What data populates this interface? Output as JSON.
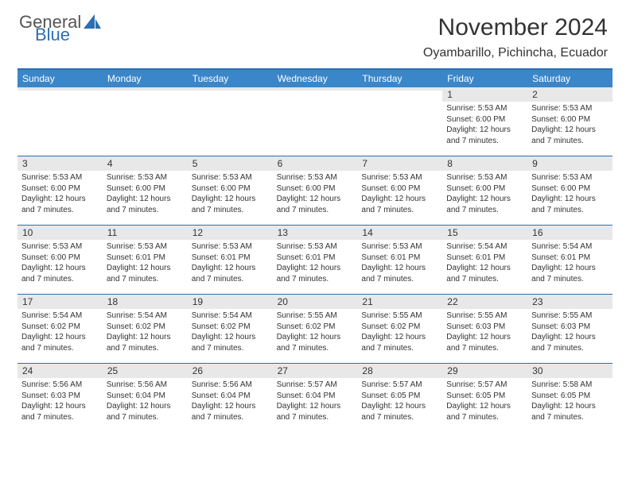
{
  "brand": {
    "text1": "General",
    "text2": "Blue",
    "logo_color": "#2d6fb3"
  },
  "title": "November 2024",
  "location": "Oyambarillo, Pichincha, Ecuador",
  "colors": {
    "header_bg": "#3b86c8",
    "header_text": "#ffffff",
    "border": "#2d6fb3",
    "daynum_bg": "#e8e8e8",
    "text": "#333333",
    "bg": "#ffffff"
  },
  "day_names": [
    "Sunday",
    "Monday",
    "Tuesday",
    "Wednesday",
    "Thursday",
    "Friday",
    "Saturday"
  ],
  "weeks": [
    [
      {
        "n": "",
        "sr": "",
        "ss": "",
        "dl": ""
      },
      {
        "n": "",
        "sr": "",
        "ss": "",
        "dl": ""
      },
      {
        "n": "",
        "sr": "",
        "ss": "",
        "dl": ""
      },
      {
        "n": "",
        "sr": "",
        "ss": "",
        "dl": ""
      },
      {
        "n": "",
        "sr": "",
        "ss": "",
        "dl": ""
      },
      {
        "n": "1",
        "sr": "Sunrise: 5:53 AM",
        "ss": "Sunset: 6:00 PM",
        "dl": "Daylight: 12 hours and 7 minutes."
      },
      {
        "n": "2",
        "sr": "Sunrise: 5:53 AM",
        "ss": "Sunset: 6:00 PM",
        "dl": "Daylight: 12 hours and 7 minutes."
      }
    ],
    [
      {
        "n": "3",
        "sr": "Sunrise: 5:53 AM",
        "ss": "Sunset: 6:00 PM",
        "dl": "Daylight: 12 hours and 7 minutes."
      },
      {
        "n": "4",
        "sr": "Sunrise: 5:53 AM",
        "ss": "Sunset: 6:00 PM",
        "dl": "Daylight: 12 hours and 7 minutes."
      },
      {
        "n": "5",
        "sr": "Sunrise: 5:53 AM",
        "ss": "Sunset: 6:00 PM",
        "dl": "Daylight: 12 hours and 7 minutes."
      },
      {
        "n": "6",
        "sr": "Sunrise: 5:53 AM",
        "ss": "Sunset: 6:00 PM",
        "dl": "Daylight: 12 hours and 7 minutes."
      },
      {
        "n": "7",
        "sr": "Sunrise: 5:53 AM",
        "ss": "Sunset: 6:00 PM",
        "dl": "Daylight: 12 hours and 7 minutes."
      },
      {
        "n": "8",
        "sr": "Sunrise: 5:53 AM",
        "ss": "Sunset: 6:00 PM",
        "dl": "Daylight: 12 hours and 7 minutes."
      },
      {
        "n": "9",
        "sr": "Sunrise: 5:53 AM",
        "ss": "Sunset: 6:00 PM",
        "dl": "Daylight: 12 hours and 7 minutes."
      }
    ],
    [
      {
        "n": "10",
        "sr": "Sunrise: 5:53 AM",
        "ss": "Sunset: 6:00 PM",
        "dl": "Daylight: 12 hours and 7 minutes."
      },
      {
        "n": "11",
        "sr": "Sunrise: 5:53 AM",
        "ss": "Sunset: 6:01 PM",
        "dl": "Daylight: 12 hours and 7 minutes."
      },
      {
        "n": "12",
        "sr": "Sunrise: 5:53 AM",
        "ss": "Sunset: 6:01 PM",
        "dl": "Daylight: 12 hours and 7 minutes."
      },
      {
        "n": "13",
        "sr": "Sunrise: 5:53 AM",
        "ss": "Sunset: 6:01 PM",
        "dl": "Daylight: 12 hours and 7 minutes."
      },
      {
        "n": "14",
        "sr": "Sunrise: 5:53 AM",
        "ss": "Sunset: 6:01 PM",
        "dl": "Daylight: 12 hours and 7 minutes."
      },
      {
        "n": "15",
        "sr": "Sunrise: 5:54 AM",
        "ss": "Sunset: 6:01 PM",
        "dl": "Daylight: 12 hours and 7 minutes."
      },
      {
        "n": "16",
        "sr": "Sunrise: 5:54 AM",
        "ss": "Sunset: 6:01 PM",
        "dl": "Daylight: 12 hours and 7 minutes."
      }
    ],
    [
      {
        "n": "17",
        "sr": "Sunrise: 5:54 AM",
        "ss": "Sunset: 6:02 PM",
        "dl": "Daylight: 12 hours and 7 minutes."
      },
      {
        "n": "18",
        "sr": "Sunrise: 5:54 AM",
        "ss": "Sunset: 6:02 PM",
        "dl": "Daylight: 12 hours and 7 minutes."
      },
      {
        "n": "19",
        "sr": "Sunrise: 5:54 AM",
        "ss": "Sunset: 6:02 PM",
        "dl": "Daylight: 12 hours and 7 minutes."
      },
      {
        "n": "20",
        "sr": "Sunrise: 5:55 AM",
        "ss": "Sunset: 6:02 PM",
        "dl": "Daylight: 12 hours and 7 minutes."
      },
      {
        "n": "21",
        "sr": "Sunrise: 5:55 AM",
        "ss": "Sunset: 6:02 PM",
        "dl": "Daylight: 12 hours and 7 minutes."
      },
      {
        "n": "22",
        "sr": "Sunrise: 5:55 AM",
        "ss": "Sunset: 6:03 PM",
        "dl": "Daylight: 12 hours and 7 minutes."
      },
      {
        "n": "23",
        "sr": "Sunrise: 5:55 AM",
        "ss": "Sunset: 6:03 PM",
        "dl": "Daylight: 12 hours and 7 minutes."
      }
    ],
    [
      {
        "n": "24",
        "sr": "Sunrise: 5:56 AM",
        "ss": "Sunset: 6:03 PM",
        "dl": "Daylight: 12 hours and 7 minutes."
      },
      {
        "n": "25",
        "sr": "Sunrise: 5:56 AM",
        "ss": "Sunset: 6:04 PM",
        "dl": "Daylight: 12 hours and 7 minutes."
      },
      {
        "n": "26",
        "sr": "Sunrise: 5:56 AM",
        "ss": "Sunset: 6:04 PM",
        "dl": "Daylight: 12 hours and 7 minutes."
      },
      {
        "n": "27",
        "sr": "Sunrise: 5:57 AM",
        "ss": "Sunset: 6:04 PM",
        "dl": "Daylight: 12 hours and 7 minutes."
      },
      {
        "n": "28",
        "sr": "Sunrise: 5:57 AM",
        "ss": "Sunset: 6:05 PM",
        "dl": "Daylight: 12 hours and 7 minutes."
      },
      {
        "n": "29",
        "sr": "Sunrise: 5:57 AM",
        "ss": "Sunset: 6:05 PM",
        "dl": "Daylight: 12 hours and 7 minutes."
      },
      {
        "n": "30",
        "sr": "Sunrise: 5:58 AM",
        "ss": "Sunset: 6:05 PM",
        "dl": "Daylight: 12 hours and 7 minutes."
      }
    ]
  ]
}
